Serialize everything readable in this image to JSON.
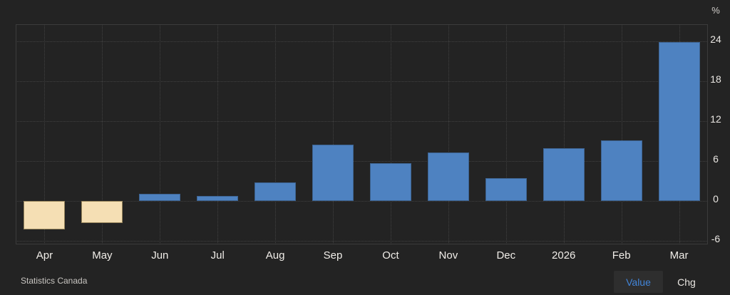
{
  "chart_data": {
    "type": "bar",
    "title": "",
    "unit": "%",
    "source": "Statistics Canada",
    "categories": [
      "Apr",
      "May",
      "Jun",
      "Jul",
      "Aug",
      "Sep",
      "Oct",
      "Nov",
      "Dec",
      "2026",
      "Feb",
      "Mar"
    ],
    "values": [
      -4.3,
      -3.3,
      1.1,
      0.8,
      2.8,
      8.5,
      5.7,
      7.3,
      3.5,
      8.0,
      9.1,
      23.9
    ],
    "y_ticks": [
      24,
      18,
      12,
      6,
      0,
      -6
    ],
    "ylim": [
      -6.5,
      26.6
    ],
    "xlabel": "",
    "ylabel": "%",
    "grid": "dotted",
    "legend": "none",
    "colors": {
      "positive_fill": "#4e82c1",
      "positive_border": "#3d6391",
      "negative_fill": "#f5dfb4",
      "negative_border": "#97855c",
      "background": "#232323",
      "grid": "#414141",
      "text": "#f0ede8",
      "accent": "#4285d9"
    }
  },
  "footer": {
    "source": "Statistics Canada",
    "value_button": "Value",
    "chg_button": "Chg",
    "active_button": "Value"
  }
}
